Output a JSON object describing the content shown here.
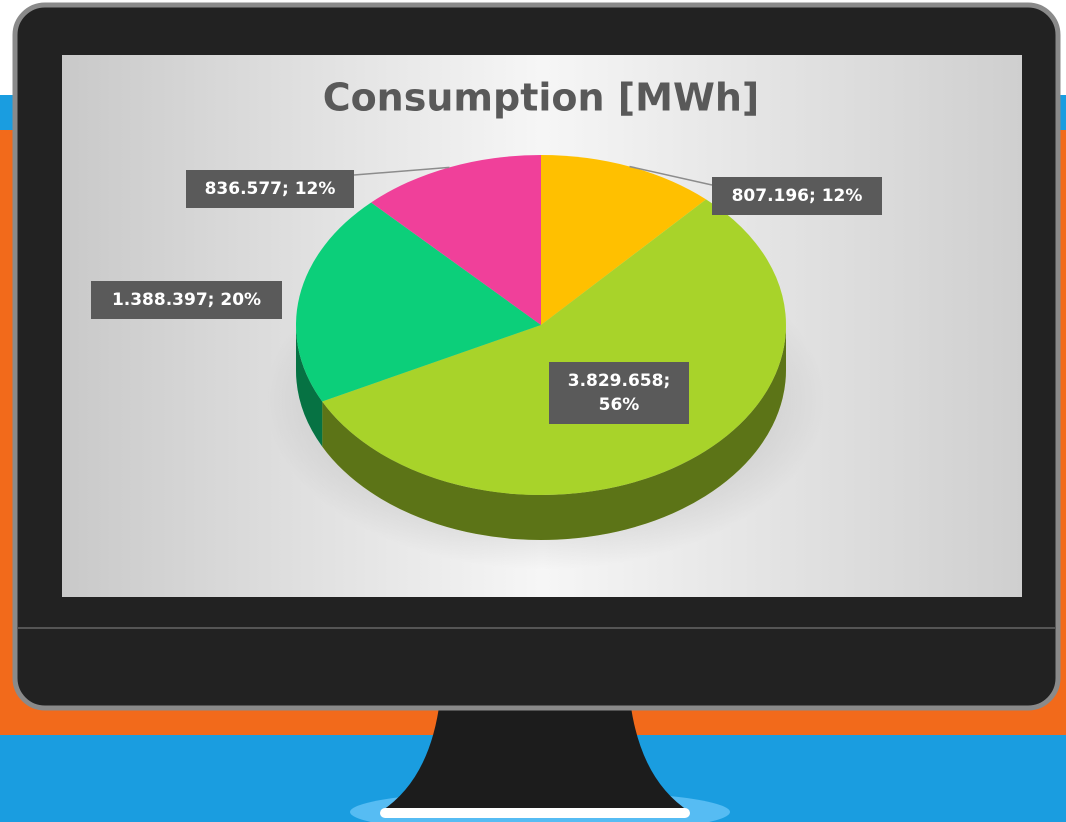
{
  "chart_data": {
    "type": "pie",
    "title": "Consumption [MWh]",
    "values": [
      807196,
      3829658,
      1388397,
      836577
    ],
    "value_labels": [
      "807.196; 12%",
      "3.829.658; 56%",
      "1.388.397; 20%",
      "836.577; 12%"
    ],
    "colors": [
      "#ffc000",
      "#a8d32a",
      "#0ccf7a",
      "#f0409a"
    ]
  }
}
